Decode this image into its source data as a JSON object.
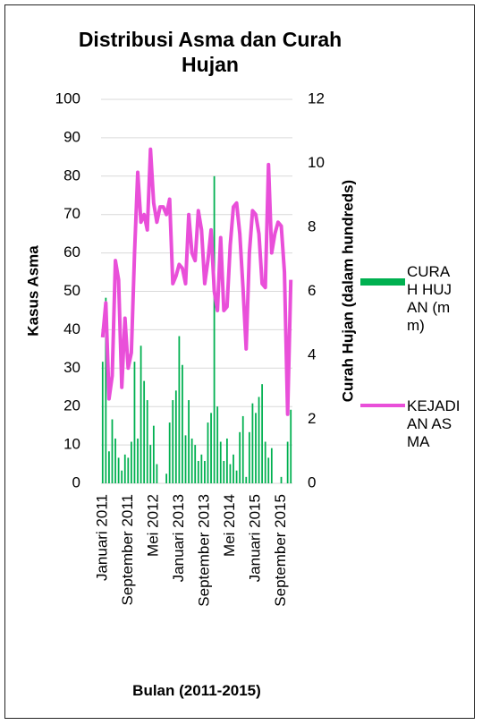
{
  "chart_data": {
    "type": "combo",
    "title": "Distribusi Asma dan Curah Hujan",
    "x_label": "Bulan (2011-2015)",
    "y_label": "Kasus Asma",
    "y2_label": "Curah Hujan (dalam hundreds)",
    "categories": [
      "Januari 2011",
      null,
      null,
      null,
      null,
      null,
      null,
      null,
      "September 2011",
      null,
      null,
      null,
      null,
      null,
      null,
      null,
      "Mei 2012",
      null,
      null,
      null,
      null,
      null,
      null,
      null,
      "Januari 2013",
      null,
      null,
      null,
      null,
      null,
      null,
      null,
      "September 2013",
      null,
      null,
      null,
      null,
      null,
      null,
      null,
      "Mei 2014",
      null,
      null,
      null,
      null,
      null,
      null,
      null,
      "Januari 2015",
      null,
      null,
      null,
      null,
      null,
      null,
      null,
      "September 2015",
      null,
      null,
      null
    ],
    "ylim": [
      0,
      100
    ],
    "yticks": [
      0,
      10,
      20,
      30,
      40,
      50,
      60,
      70,
      80,
      90,
      100
    ],
    "y2lim": [
      0,
      12
    ],
    "y2ticks": [
      0,
      2,
      4,
      6,
      8,
      10,
      12
    ],
    "series": [
      {
        "name": "CURAH HUJAN (mm)",
        "type": "bar",
        "axis": "y2",
        "color": "#00b050",
        "values": [
          3.8,
          5.8,
          1.0,
          2.0,
          1.4,
          0.8,
          0.4,
          0.9,
          0.8,
          1.3,
          3.8,
          1.4,
          4.3,
          3.2,
          2.6,
          1.2,
          1.8,
          0.6,
          0,
          0,
          0.3,
          1.9,
          2.6,
          2.9,
          4.6,
          3.7,
          1.5,
          2.6,
          1.4,
          1.2,
          0.7,
          0.9,
          0.7,
          1.9,
          2.2,
          9.6,
          2.4,
          1.3,
          0.7,
          1.4,
          0.6,
          0.9,
          0.4,
          1.6,
          2.1,
          0.2,
          1.6,
          2.5,
          2.2,
          2.7,
          3.1,
          1.3,
          0.8,
          1.1,
          0,
          0,
          0.2,
          0,
          1.3,
          2.3
        ]
      },
      {
        "name": "KEJADIAN ASMA",
        "type": "line",
        "color": "#e94fd9",
        "values": [
          38,
          47,
          22,
          28,
          58,
          53,
          25,
          43,
          30,
          34,
          60,
          81,
          68,
          70,
          66,
          87,
          73,
          68,
          72,
          72,
          70,
          74,
          52,
          54,
          57,
          56,
          52,
          70,
          60,
          58,
          71,
          66,
          52,
          58,
          66,
          50,
          45,
          64,
          45,
          46,
          62,
          72,
          73,
          65,
          51,
          35,
          60,
          71,
          70,
          65,
          52,
          51,
          83,
          60,
          65,
          68,
          67,
          55,
          18,
          53
        ]
      }
    ]
  }
}
